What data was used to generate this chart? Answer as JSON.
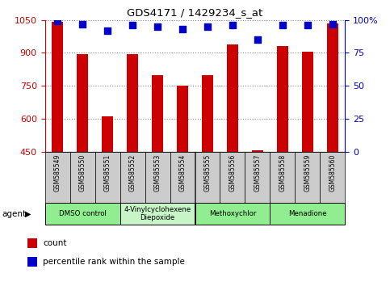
{
  "title": "GDS4171 / 1429234_s_at",
  "samples": [
    "GSM585549",
    "GSM585550",
    "GSM585551",
    "GSM585552",
    "GSM585553",
    "GSM585554",
    "GSM585555",
    "GSM585556",
    "GSM585557",
    "GSM585558",
    "GSM585559",
    "GSM585560"
  ],
  "counts": [
    1040,
    895,
    610,
    893,
    800,
    750,
    800,
    940,
    455,
    930,
    905,
    1035
  ],
  "percentile_ranks": [
    99,
    97,
    92,
    96,
    95,
    93,
    95,
    96,
    85,
    96,
    96,
    97
  ],
  "ylim_left": [
    450,
    1050
  ],
  "ylim_right": [
    0,
    100
  ],
  "yticks_left": [
    450,
    600,
    750,
    900,
    1050
  ],
  "yticks_right": [
    0,
    25,
    50,
    75,
    100
  ],
  "ytick_labels_right": [
    "0",
    "25",
    "50",
    "75",
    "100%"
  ],
  "bar_color": "#cc0000",
  "dot_color": "#0000cc",
  "left_tick_color": "#cc0000",
  "right_tick_color": "#0000cc",
  "agent_groups": [
    {
      "label": "DMSO control",
      "start": 0,
      "end": 3,
      "color": "#90ee90"
    },
    {
      "label": "4-Vinylcyclohexene\nDiepoxide",
      "start": 3,
      "end": 6,
      "color": "#c8f5c8"
    },
    {
      "label": "Methoxychlor",
      "start": 6,
      "end": 9,
      "color": "#90ee90"
    },
    {
      "label": "Menadione",
      "start": 9,
      "end": 12,
      "color": "#90ee90"
    }
  ],
  "legend_count_color": "#cc0000",
  "legend_dot_color": "#0000cc",
  "bar_width": 0.45,
  "dot_size": 40,
  "background_color": "#ffffff",
  "grid_color": "#888888",
  "sample_bg_color": "#cccccc"
}
